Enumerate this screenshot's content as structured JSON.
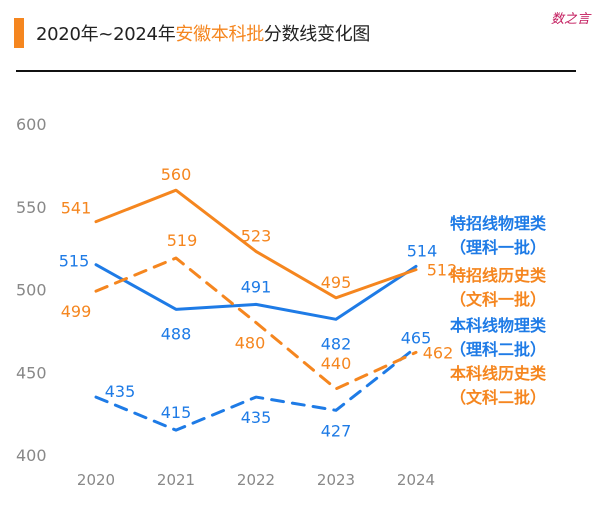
{
  "title": {
    "prefix": "2020年~2024年",
    "highlight": "安徽本科批",
    "suffix": "分数线变化图"
  },
  "watermark": "数之言",
  "colors": {
    "blue": "#1E7BE6",
    "orange": "#F5861F",
    "axis": "#888888",
    "title_bar": "#F5861F"
  },
  "chart_data": {
    "type": "line",
    "title": "2020年~2024年安徽本科批分数线变化图",
    "x": [
      2020,
      2021,
      2022,
      2023,
      2024
    ],
    "ylim": [
      400,
      600
    ],
    "yticks": [
      400,
      450,
      500,
      550,
      600
    ],
    "grid": false,
    "legend_position": "right",
    "series": [
      {
        "name": "特招线物理类（理科一批）",
        "color": "#1E7BE6",
        "dash": false,
        "values": [
          515,
          488,
          491,
          482,
          514
        ],
        "labels": [
          "515",
          "488",
          "491",
          "482",
          "514"
        ]
      },
      {
        "name": "特招线历史类（文科一批）",
        "color": "#F5861F",
        "dash": false,
        "values": [
          541,
          560,
          523,
          495,
          512
        ],
        "labels": [
          "541",
          "560",
          "523",
          "495",
          "512"
        ]
      },
      {
        "name": "本科线物理类（理科二批）",
        "color": "#1E7BE6",
        "dash": true,
        "values": [
          435,
          415,
          435,
          427,
          465
        ],
        "labels": [
          "435",
          "415",
          "435",
          "427",
          "465"
        ]
      },
      {
        "name": "本科线历史类（文科二批）",
        "color": "#F5861F",
        "dash": true,
        "values": [
          499,
          519,
          480,
          440,
          462
        ],
        "labels": [
          "499",
          "519",
          "480",
          "440",
          "462"
        ]
      }
    ]
  },
  "legend": [
    {
      "line1": "特招线物理类",
      "line2": "（理科一批）",
      "color": "#1E7BE6"
    },
    {
      "line1": "特招线历史类",
      "line2": "（文科一批）",
      "color": "#F5861F"
    },
    {
      "line1": "本科线物理类",
      "line2": "（理科二批）",
      "color": "#1E7BE6"
    },
    {
      "line1": "本科线历史类",
      "line2": "（文科二批）",
      "color": "#F5861F"
    }
  ]
}
